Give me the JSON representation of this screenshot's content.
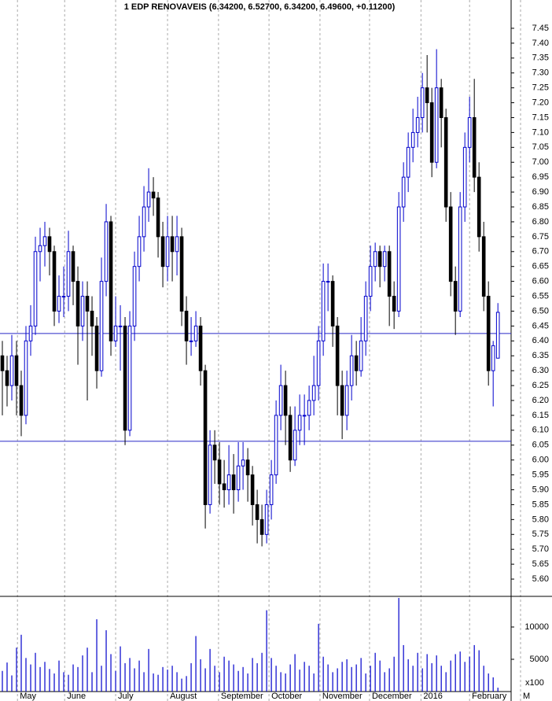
{
  "chart_data": {
    "type": "candlestick",
    "title": "1 EDP RENOVAVEIS (6.34200, 6.52700, 6.34200, 6.49600, +0.11200)",
    "xlim": [
      -0.5,
      107.8
    ],
    "xticks": [
      {
        "value": 3.2,
        "label": "May"
      },
      {
        "value": 13.2,
        "label": "June"
      },
      {
        "value": 24,
        "label": "July"
      },
      {
        "value": 35,
        "label": "August"
      },
      {
        "value": 45.8,
        "label": "September"
      },
      {
        "value": 56.5,
        "label": "October"
      },
      {
        "value": 67.3,
        "label": "November"
      },
      {
        "value": 77.8,
        "label": "December"
      },
      {
        "value": 88.7,
        "label": "2016"
      },
      {
        "value": 99,
        "label": "February"
      },
      {
        "value": 109.8,
        "label": "M"
      }
    ],
    "grid": true,
    "up_color": "#0000cc",
    "down_color": "#000000",
    "open": [
      6.35,
      6.3,
      6.25,
      6.35,
      6.25,
      6.15,
      6.4,
      6.45,
      6.7,
      6.72,
      6.75,
      6.7,
      6.5,
      6.55,
      6.55,
      6.7,
      6.6,
      6.45,
      6.55,
      6.5,
      6.45,
      6.3,
      6.6,
      6.8,
      6.4,
      6.45,
      6.45,
      6.1,
      6.45,
      6.65,
      6.75,
      6.85,
      6.9,
      6.88,
      6.75,
      6.65,
      6.75,
      6.7,
      6.75,
      6.5,
      6.4,
      6.4,
      6.45,
      6.3,
      5.85,
      6.05,
      6.0,
      5.92,
      5.9,
      5.95,
      5.9,
      5.98,
      6.0,
      5.95,
      5.85,
      5.8,
      5.75,
      5.85,
      5.95,
      6.15,
      6.25,
      6.15,
      6.0,
      6.1,
      6.15,
      6.15,
      6.2,
      6.25,
      6.4,
      6.6,
      6.6,
      6.45,
      6.25,
      6.15,
      6.25,
      6.35,
      6.3,
      6.4,
      6.55,
      6.65,
      6.7,
      6.65,
      6.7,
      6.55,
      6.5,
      6.85,
      6.95,
      7.05,
      7.1,
      7.15,
      7.25,
      7.2,
      7.0,
      7.25,
      7.15,
      6.85,
      6.6,
      6.5,
      6.85,
      7.05,
      7.15,
      6.95,
      6.75,
      6.55,
      6.3,
      6.342
    ],
    "high": [
      6.4,
      6.35,
      6.42,
      6.4,
      6.3,
      6.45,
      6.52,
      6.75,
      6.78,
      6.8,
      6.78,
      6.72,
      6.62,
      6.65,
      6.77,
      6.72,
      6.65,
      6.6,
      6.6,
      6.55,
      6.48,
      6.68,
      6.86,
      6.82,
      6.55,
      6.52,
      6.48,
      6.5,
      6.7,
      6.82,
      6.92,
      6.98,
      6.95,
      6.9,
      6.8,
      6.82,
      6.82,
      6.82,
      6.78,
      6.55,
      6.48,
      6.5,
      6.48,
      6.32,
      6.1,
      6.1,
      6.06,
      6.0,
      6.05,
      6.02,
      6.06,
      6.06,
      6.04,
      5.98,
      5.9,
      5.85,
      5.9,
      6.0,
      6.2,
      6.32,
      6.3,
      6.18,
      6.18,
      6.22,
      6.22,
      6.25,
      6.35,
      6.45,
      6.66,
      6.66,
      6.62,
      6.48,
      6.3,
      6.3,
      6.42,
      6.4,
      6.48,
      6.6,
      6.72,
      6.73,
      6.72,
      6.72,
      6.72,
      6.6,
      6.9,
      7.0,
      7.1,
      7.18,
      7.22,
      7.3,
      7.36,
      7.25,
      7.38,
      7.28,
      7.18,
      6.9,
      6.65,
      6.9,
      7.1,
      7.22,
      7.28,
      7.0,
      6.8,
      6.6,
      6.4,
      6.527
    ],
    "low": [
      6.15,
      6.18,
      6.2,
      6.15,
      6.08,
      6.12,
      6.35,
      6.42,
      6.6,
      6.65,
      6.62,
      6.45,
      6.46,
      6.48,
      6.5,
      6.52,
      6.32,
      6.4,
      6.2,
      6.35,
      6.24,
      6.28,
      6.55,
      6.35,
      6.38,
      6.3,
      6.05,
      6.08,
      6.4,
      6.6,
      6.7,
      6.8,
      6.82,
      6.68,
      6.58,
      6.6,
      6.6,
      6.62,
      6.45,
      6.32,
      6.35,
      6.38,
      6.25,
      5.77,
      5.82,
      5.92,
      5.85,
      5.84,
      5.85,
      5.82,
      5.86,
      5.9,
      5.86,
      5.78,
      5.72,
      5.71,
      5.72,
      5.8,
      5.92,
      6.1,
      6.05,
      5.96,
      5.98,
      6.05,
      6.05,
      6.1,
      6.15,
      6.2,
      6.35,
      6.5,
      6.38,
      6.15,
      6.07,
      6.1,
      6.2,
      6.25,
      6.28,
      6.35,
      6.5,
      6.6,
      6.58,
      6.6,
      6.45,
      6.44,
      6.48,
      6.8,
      6.9,
      7.0,
      7.05,
      7.1,
      7.1,
      6.95,
      6.98,
      7.05,
      6.8,
      6.55,
      6.42,
      6.48,
      6.8,
      7.0,
      6.9,
      6.7,
      6.5,
      6.25,
      6.18,
      6.342
    ],
    "close": [
      6.3,
      6.25,
      6.35,
      6.25,
      6.15,
      6.4,
      6.45,
      6.7,
      6.72,
      6.75,
      6.7,
      6.5,
      6.55,
      6.55,
      6.7,
      6.6,
      6.45,
      6.55,
      6.5,
      6.45,
      6.3,
      6.6,
      6.8,
      6.4,
      6.45,
      6.45,
      6.1,
      6.45,
      6.65,
      6.75,
      6.85,
      6.9,
      6.88,
      6.75,
      6.65,
      6.75,
      6.7,
      6.75,
      6.5,
      6.4,
      6.4,
      6.45,
      6.3,
      5.85,
      6.05,
      6.0,
      5.92,
      5.9,
      5.95,
      5.9,
      5.98,
      6.0,
      5.95,
      5.85,
      5.8,
      5.75,
      5.85,
      5.95,
      6.15,
      6.25,
      6.15,
      6.0,
      6.1,
      6.15,
      6.15,
      6.2,
      6.25,
      6.4,
      6.6,
      6.6,
      6.45,
      6.25,
      6.15,
      6.25,
      6.35,
      6.3,
      6.4,
      6.55,
      6.65,
      6.7,
      6.65,
      6.7,
      6.55,
      6.5,
      6.85,
      6.95,
      7.05,
      7.1,
      7.15,
      7.25,
      7.2,
      7.0,
      7.25,
      7.15,
      6.85,
      6.6,
      6.5,
      6.85,
      7.05,
      7.15,
      6.95,
      6.75,
      6.55,
      6.3,
      6.384,
      6.496
    ],
    "ylim": [
      5.542,
      7.545
    ],
    "yticks": [
      {
        "value": 5.6,
        "label": "5.60"
      },
      {
        "value": 5.65,
        "label": "5.65"
      },
      {
        "value": 5.7,
        "label": "5.70"
      },
      {
        "value": 5.75,
        "label": "5.75"
      },
      {
        "value": 5.8,
        "label": "5.80"
      },
      {
        "value": 5.85,
        "label": "5.85"
      },
      {
        "value": 5.9,
        "label": "5.90"
      },
      {
        "value": 5.95,
        "label": "5.95"
      },
      {
        "value": 6,
        "label": "6.00"
      },
      {
        "value": 6.05,
        "label": "6.05"
      },
      {
        "value": 6.1,
        "label": "6.10"
      },
      {
        "value": 6.15,
        "label": "6.15"
      },
      {
        "value": 6.2,
        "label": "6.20"
      },
      {
        "value": 6.25,
        "label": "6.25"
      },
      {
        "value": 6.3,
        "label": "6.30"
      },
      {
        "value": 6.35,
        "label": "6.35"
      },
      {
        "value": 6.4,
        "label": "6.40"
      },
      {
        "value": 6.45,
        "label": "6.45"
      },
      {
        "value": 6.5,
        "label": "6.50"
      },
      {
        "value": 6.55,
        "label": "6.55"
      },
      {
        "value": 6.6,
        "label": "6.60"
      },
      {
        "value": 6.65,
        "label": "6.65"
      },
      {
        "value": 6.7,
        "label": "6.70"
      },
      {
        "value": 6.75,
        "label": "6.75"
      },
      {
        "value": 6.8,
        "label": "6.80"
      },
      {
        "value": 6.85,
        "label": "6.85"
      },
      {
        "value": 6.9,
        "label": "6.90"
      },
      {
        "value": 6.95,
        "label": "6.95"
      },
      {
        "value": 7,
        "label": "7.00"
      },
      {
        "value": 7.05,
        "label": "7.05"
      },
      {
        "value": 7.1,
        "label": "7.10"
      },
      {
        "value": 7.15,
        "label": "7.15"
      },
      {
        "value": 7.2,
        "label": "7.20"
      },
      {
        "value": 7.25,
        "label": "7.25"
      },
      {
        "value": 7.3,
        "label": "7.30"
      },
      {
        "value": 7.35,
        "label": "7.35"
      },
      {
        "value": 7.4,
        "label": "7.40"
      },
      {
        "value": 7.45,
        "label": "7.45"
      }
    ],
    "hlines": [
      6.425,
      6.063
    ],
    "hline_color": "#2828c8",
    "volume": {
      "type": "bar",
      "color": "#0000cc",
      "unit_label": "x100",
      "values": [
        3200,
        4500,
        2500,
        6800,
        8800,
        5200,
        4200,
        6000,
        3800,
        4600,
        3500,
        2800,
        4800,
        3000,
        2600,
        4200,
        3800,
        5600,
        6800,
        3000,
        11200,
        4000,
        9500,
        5800,
        3200,
        7000,
        4400,
        5200,
        3600,
        4800,
        3000,
        6600,
        2800,
        2600,
        3800,
        3400,
        4000,
        3000,
        2000,
        2400,
        4400,
        8600,
        5000,
        3600,
        6600,
        4000,
        3000,
        5400,
        4800,
        4200,
        3200,
        3800,
        2800,
        5200,
        4400,
        6000,
        12600,
        5200,
        4000,
        3000,
        2800,
        4200,
        5800,
        3400,
        4600,
        4000,
        2800,
        10500,
        5400,
        4200,
        3000,
        3600,
        4600,
        5000,
        3800,
        4200,
        5200,
        2800,
        4000,
        6000,
        4800,
        3000,
        3600,
        5400,
        14500,
        7200,
        5000,
        4000,
        6000,
        3600,
        5800,
        4400,
        5600,
        4000,
        3000,
        4800,
        5800,
        6200,
        4600,
        5400,
        7200,
        6400,
        4000,
        2800,
        2200,
        600
      ],
      "ylim": [
        0,
        14750
      ],
      "yticks": [
        5000,
        10000
      ]
    }
  }
}
